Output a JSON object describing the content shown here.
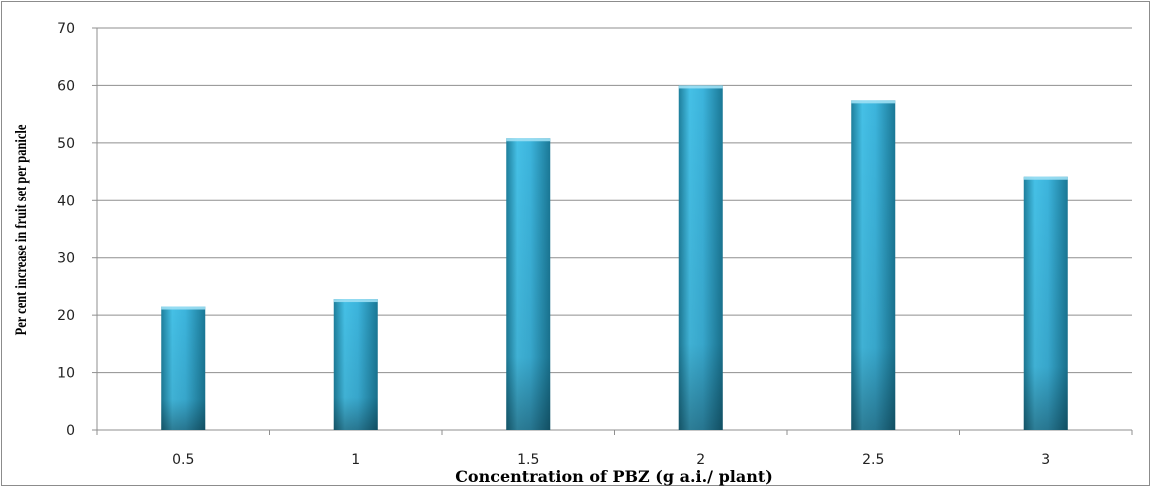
{
  "chart_data": {
    "type": "bar",
    "categories": [
      "0.5",
      "1",
      "1.5",
      "2",
      "2.5",
      "3"
    ],
    "values": [
      21.5,
      22.8,
      50.8,
      60.0,
      57.4,
      44.1
    ],
    "xlabel": "Concentration of PBZ (g a.i./ plant)",
    "ylabel": "Per cent increase in fruit set per panicle",
    "ylim": [
      0,
      70
    ],
    "yticks": [
      0,
      10,
      20,
      30,
      40,
      50,
      60,
      70
    ],
    "grid": true,
    "legend": "none",
    "bar_color": "#3cb4dc"
  }
}
